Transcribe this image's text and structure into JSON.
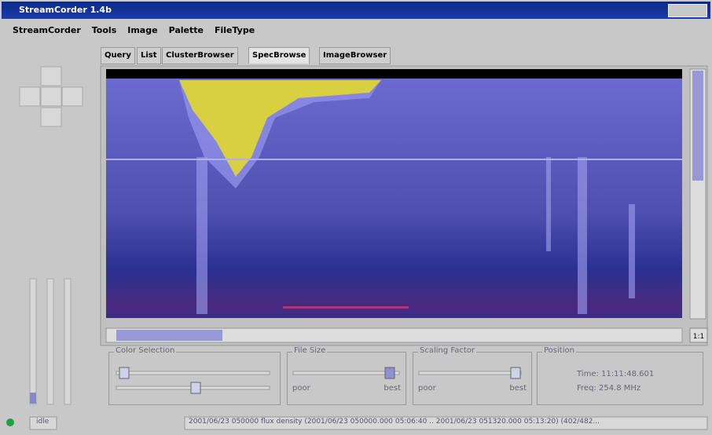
{
  "window": {
    "title": "StreamCorder 1.4b"
  },
  "menu": [
    "StreamCorder",
    "Tools",
    "Image",
    "Palette",
    "FileType"
  ],
  "tabs": [
    "Query",
    "List",
    "ClusterBrowser",
    "SpecBrowse",
    "ImageBrowser"
  ],
  "zoom_button": "1:1",
  "panels": {
    "color_selection": {
      "title": "Color Selection"
    },
    "file_size": {
      "title": "File Size",
      "min": "poor",
      "max": "best"
    },
    "scaling_factor": {
      "title": "Scaling Factor",
      "min": "poor",
      "max": "best"
    },
    "position": {
      "title": "Position",
      "time": "Time: 11:11:48.601",
      "freq": "Freq: 254.8 MHz"
    }
  },
  "status": {
    "state": "idle",
    "message": "2001/06/23 050000 flux density (2001/06/23 050000.000 05:06:40 .. 2001/06/23 051320.000 05:13:20) (402/482..."
  }
}
